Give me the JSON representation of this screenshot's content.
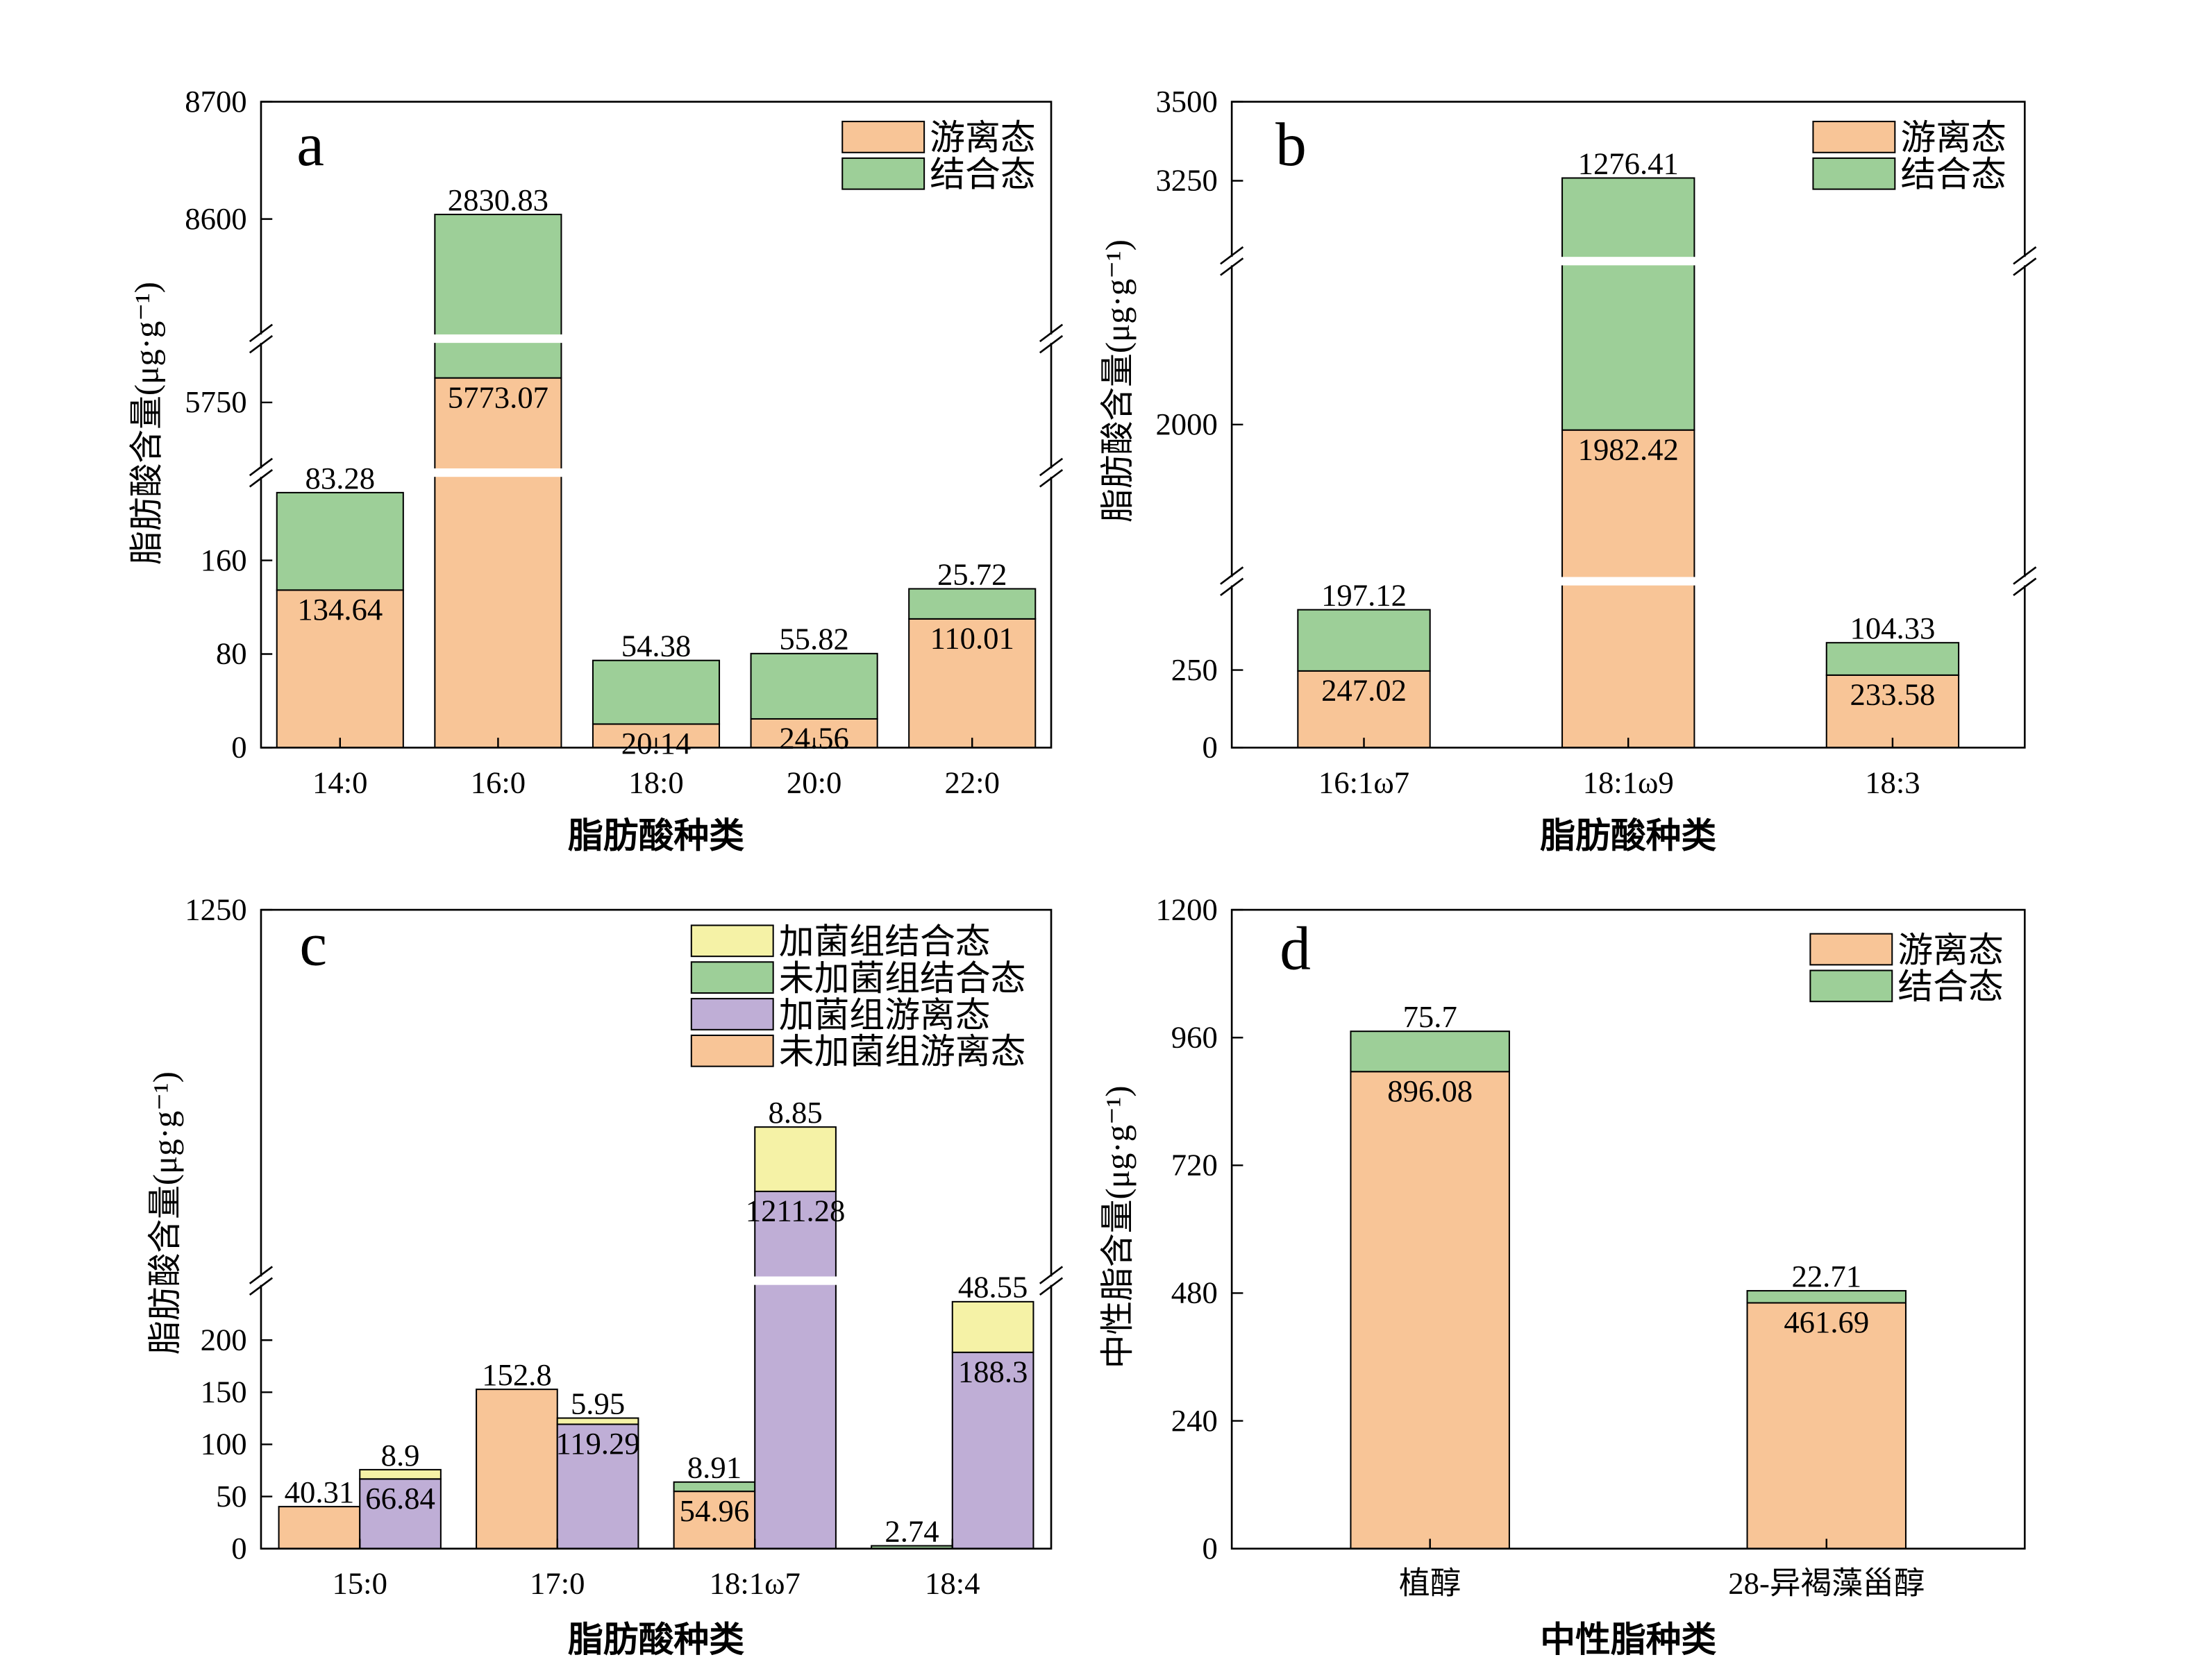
{
  "chart_data": [
    {
      "type": "bar",
      "stacked": true,
      "panel_label": "a",
      "ylabel": "脂肪酸含量(μg·g⁻¹)",
      "xlabel": "脂肪酸种类",
      "categories": [
        "14:0",
        "16:0",
        "18:0",
        "20:0",
        "22:0"
      ],
      "y_segments": [
        {
          "ylim": [
            0,
            235
          ],
          "yticks": [
            0,
            80,
            160
          ]
        },
        {
          "ylim": [
            5684,
            5810
          ],
          "yticks": [
            5750
          ]
        },
        {
          "ylim": [
            8498,
            8700
          ],
          "yticks": [
            8600,
            8700
          ]
        }
      ],
      "series": [
        {
          "name": "游离态",
          "color": "#f8c597",
          "values": [
            134.64,
            5773.07,
            20.14,
            24.56,
            110.01
          ]
        },
        {
          "name": "结合态",
          "color": "#9dcf98",
          "values": [
            83.28,
            2830.83,
            54.38,
            55.82,
            25.72
          ]
        }
      ],
      "legend": "upper right"
    },
    {
      "type": "bar",
      "stacked": true,
      "panel_label": "b",
      "ylabel": "脂肪酸含量(μg·g⁻¹)",
      "xlabel": "脂肪酸种类",
      "categories": [
        "16:1ω7",
        "18:1ω9",
        "18:3"
      ],
      "y_segments": [
        {
          "ylim": [
            0,
            536
          ],
          "yticks": [
            0,
            250
          ]
        },
        {
          "ylim": [
            1495,
            2527
          ],
          "yticks": [
            2000
          ]
        },
        {
          "ylim": [
            2996,
            3500
          ],
          "yticks": [
            3250,
            3500
          ]
        }
      ],
      "series": [
        {
          "name": "游离态",
          "color": "#f8c597",
          "values": [
            247.02,
            1982.42,
            233.58
          ]
        },
        {
          "name": "结合态",
          "color": "#9dcf98",
          "values": [
            197.12,
            1276.41,
            104.33
          ]
        }
      ],
      "legend": "upper right"
    },
    {
      "type": "bar",
      "stacked": true,
      "panel_label": "c",
      "ylabel": "脂肪酸含量(μg·g⁻¹)",
      "xlabel": "脂肪酸种类",
      "categories": [
        "15:0",
        "17:0",
        "18:1ω7",
        "18:4"
      ],
      "y_segments": [
        {
          "ylim": [
            0,
            257
          ],
          "yticks": [
            0,
            50,
            100,
            150,
            200
          ]
        },
        {
          "ylim": [
            1199,
            1250
          ],
          "yticks": [
            1250
          ]
        }
      ],
      "series": [
        {
          "name": "未加菌组游离态",
          "color": "#f8c597",
          "stack": 0,
          "values": [
            40.31,
            152.8,
            54.96,
            null
          ]
        },
        {
          "name": "加菌组游离态",
          "color": "#bfaed6",
          "stack": 1,
          "values": [
            66.84,
            119.29,
            1211.28,
            188.3
          ]
        },
        {
          "name": "未加菌组结合态",
          "color": "#9dcf98",
          "stack": 0,
          "values": [
            null,
            null,
            8.91,
            2.74
          ]
        },
        {
          "name": "加菌组结合态",
          "color": "#f5f2a6",
          "stack": 1,
          "values": [
            8.9,
            5.95,
            8.85,
            48.55
          ]
        }
      ],
      "legend": "upper right",
      "legend_order": "reverse"
    },
    {
      "type": "bar",
      "stacked": true,
      "panel_label": "d",
      "ylabel": "中性脂含量(μg·g⁻¹)",
      "xlabel": "中性脂种类",
      "categories": [
        "植醇",
        "28-异褐藻甾醇"
      ],
      "ylim": [
        0,
        1200
      ],
      "yticks": [
        0,
        240,
        480,
        720,
        960,
        1200
      ],
      "series": [
        {
          "name": "游离态",
          "color": "#f8c597",
          "values": [
            896.08,
            461.69
          ]
        },
        {
          "name": "结合态",
          "color": "#9dcf98",
          "values": [
            75.7,
            22.71
          ]
        }
      ],
      "legend": "upper right"
    }
  ]
}
